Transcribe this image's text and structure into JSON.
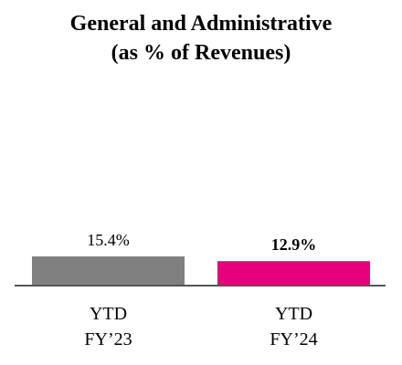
{
  "chart_data": {
    "type": "bar",
    "title": "General and Administrative",
    "subtitle": "(as % of Revenues)",
    "categories": [
      {
        "line1": "YTD",
        "line2": "FY’23"
      },
      {
        "line1": "YTD",
        "line2": "FY’24"
      }
    ],
    "values": [
      15.4,
      12.9
    ],
    "data_labels": [
      "15.4%",
      "12.9%"
    ],
    "data_label_bold": [
      false,
      true
    ],
    "colors": [
      "#808080",
      "#E5007E"
    ],
    "axis_color": "#555555",
    "xlabel": "",
    "ylabel": "",
    "ylim": [
      0,
      15.4
    ],
    "grid": false
  }
}
